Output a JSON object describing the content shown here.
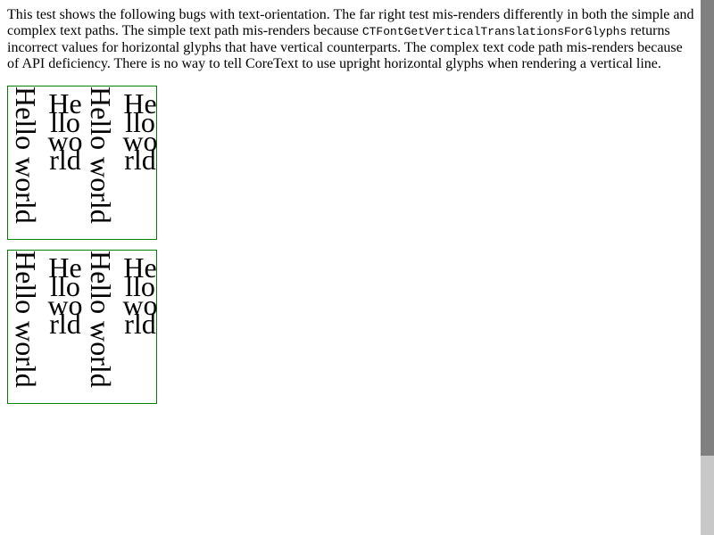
{
  "description": {
    "text_before_code": "This test shows the following bugs with text-orientation. The far right test mis-renders differently in both the simple and complex text paths. The simple text path mis-renders because ",
    "code": "CTFontGetVerticalTranslationsForGlyphs",
    "text_after_code": " returns incorrect values for horizontal glyphs that have vertical counterparts. The complex text code path mis-renders because of API deficiency. There is no way to tell CoreText to use upright horizontal glyphs when rendering a vertical line."
  },
  "tests": [
    {
      "columns": [
        {
          "text": "Hello world",
          "orientation": "sideways"
        },
        {
          "text": "Hello world",
          "orientation": "upright"
        },
        {
          "text": "Hello world",
          "orientation": "sideways"
        },
        {
          "text": "Hello world",
          "orientation": "upright"
        }
      ]
    },
    {
      "columns": [
        {
          "text": "Hello world",
          "orientation": "sideways"
        },
        {
          "text": "Hello world",
          "orientation": "upright"
        },
        {
          "text": "Hello world",
          "orientation": "sideways"
        },
        {
          "text": "Hello world",
          "orientation": "upright"
        }
      ]
    }
  ],
  "colors": {
    "box_border": "#008000",
    "scrollbar_track": "#c8c8c8",
    "scrollbar_thumb": "#808080"
  }
}
